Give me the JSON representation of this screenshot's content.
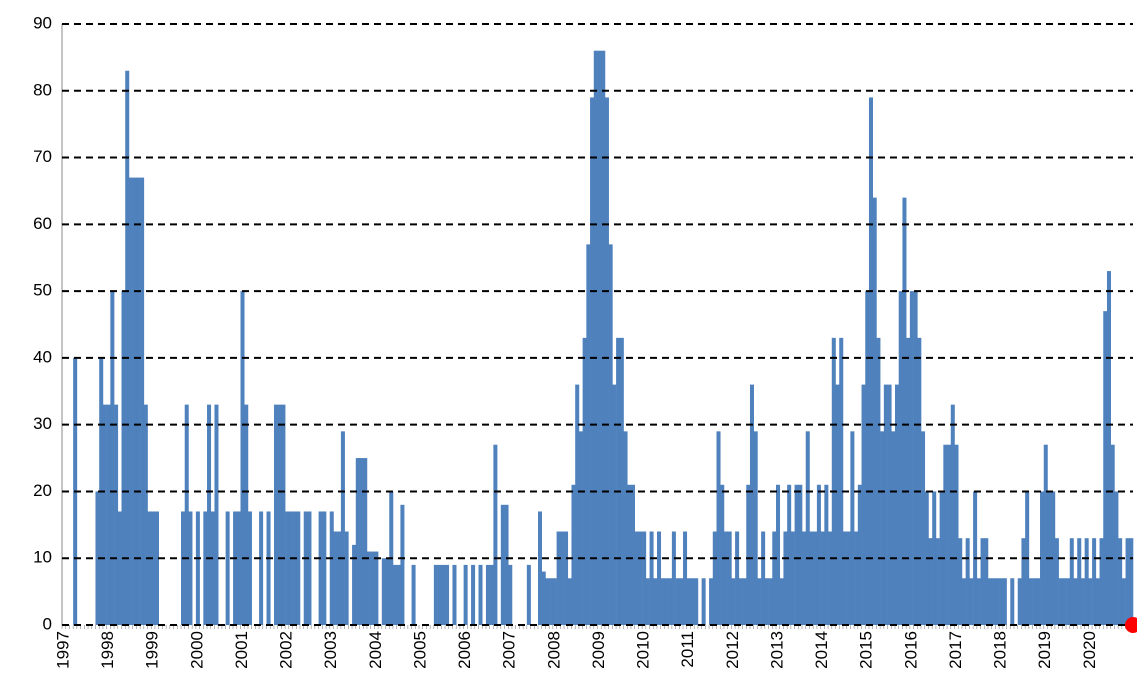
{
  "chart_data": {
    "type": "bar",
    "categories": [
      "1997",
      null,
      null,
      null,
      null,
      null,
      null,
      null,
      null,
      null,
      null,
      null,
      "1998",
      null,
      null,
      null,
      null,
      null,
      null,
      null,
      null,
      null,
      null,
      null,
      "1999",
      null,
      null,
      null,
      null,
      null,
      null,
      null,
      null,
      null,
      null,
      null,
      "2000",
      null,
      null,
      null,
      null,
      null,
      null,
      null,
      null,
      null,
      null,
      null,
      "2001",
      null,
      null,
      null,
      null,
      null,
      null,
      null,
      null,
      null,
      null,
      null,
      "2002",
      null,
      null,
      null,
      null,
      null,
      null,
      null,
      null,
      null,
      null,
      null,
      "2003",
      null,
      null,
      null,
      null,
      null,
      null,
      null,
      null,
      null,
      null,
      null,
      "2004",
      null,
      null,
      null,
      null,
      null,
      null,
      null,
      null,
      null,
      null,
      null,
      "2005",
      null,
      null,
      null,
      null,
      null,
      null,
      null,
      null,
      null,
      null,
      null,
      "2006",
      null,
      null,
      null,
      null,
      null,
      null,
      null,
      null,
      null,
      null,
      null,
      "2007",
      null,
      null,
      null,
      null,
      null,
      null,
      null,
      null,
      null,
      null,
      null,
      "2008",
      null,
      null,
      null,
      null,
      null,
      null,
      null,
      null,
      null,
      null,
      null,
      "2009",
      null,
      null,
      null,
      null,
      null,
      null,
      null,
      null,
      null,
      null,
      null,
      "2010",
      null,
      null,
      null,
      null,
      null,
      null,
      null,
      null,
      null,
      null,
      null,
      "2011",
      null,
      null,
      null,
      null,
      null,
      null,
      null,
      null,
      null,
      null,
      null,
      "2012",
      null,
      null,
      null,
      null,
      null,
      null,
      null,
      null,
      null,
      null,
      null,
      "2013",
      null,
      null,
      null,
      null,
      null,
      null,
      null,
      null,
      null,
      null,
      null,
      "2014",
      null,
      null,
      null,
      null,
      null,
      null,
      null,
      null,
      null,
      null,
      null,
      "2015",
      null,
      null,
      null,
      null,
      null,
      null,
      null,
      null,
      null,
      null,
      null,
      "2016",
      null,
      null,
      null,
      null,
      null,
      null,
      null,
      null,
      null,
      null,
      null,
      "2017",
      null,
      null,
      null,
      null,
      null,
      null,
      null,
      null,
      null,
      null,
      null,
      "2018",
      null,
      null,
      null,
      null,
      null,
      null,
      null,
      null,
      null,
      null,
      null,
      "2019",
      null,
      null,
      null,
      null,
      null,
      null,
      null,
      null,
      null,
      null,
      null,
      "2020",
      null,
      null,
      null,
      null,
      null,
      null,
      null,
      null,
      null,
      null,
      null
    ],
    "values": [
      0,
      0,
      0,
      40,
      0,
      0,
      0,
      0,
      0,
      20,
      40,
      33,
      33,
      50,
      33,
      17,
      50,
      83,
      67,
      67,
      67,
      67,
      33,
      17,
      17,
      17,
      0,
      0,
      0,
      0,
      0,
      0,
      17,
      33,
      17,
      0,
      17,
      0,
      17,
      33,
      17,
      33,
      0,
      0,
      17,
      0,
      17,
      17,
      50,
      33,
      17,
      0,
      0,
      17,
      0,
      17,
      0,
      33,
      33,
      33,
      17,
      17,
      17,
      17,
      0,
      17,
      17,
      0,
      0,
      17,
      17,
      0,
      17,
      14,
      14,
      29,
      14,
      0,
      12,
      25,
      25,
      25,
      11,
      11,
      11,
      0,
      10,
      10,
      20,
      9,
      9,
      18,
      0,
      0,
      9,
      0,
      0,
      0,
      0,
      0,
      9,
      9,
      9,
      9,
      0,
      9,
      0,
      0,
      9,
      0,
      9,
      0,
      9,
      0,
      9,
      9,
      27,
      0,
      18,
      18,
      9,
      0,
      0,
      0,
      0,
      9,
      0,
      0,
      17,
      8,
      7,
      7,
      7,
      14,
      14,
      14,
      7,
      21,
      36,
      29,
      43,
      57,
      79,
      86,
      86,
      86,
      79,
      57,
      36,
      43,
      43,
      29,
      21,
      21,
      14,
      14,
      14,
      7,
      14,
      7,
      14,
      7,
      7,
      7,
      14,
      7,
      7,
      14,
      7,
      7,
      7,
      0,
      7,
      0,
      7,
      14,
      29,
      21,
      14,
      14,
      7,
      14,
      7,
      7,
      21,
      36,
      29,
      7,
      14,
      7,
      7,
      14,
      21,
      7,
      14,
      21,
      14,
      21,
      21,
      14,
      29,
      14,
      14,
      21,
      14,
      21,
      14,
      43,
      36,
      43,
      14,
      14,
      29,
      14,
      21,
      36,
      50,
      79,
      64,
      43,
      29,
      36,
      36,
      29,
      36,
      50,
      64,
      43,
      50,
      50,
      43,
      29,
      20,
      13,
      20,
      13,
      20,
      27,
      27,
      33,
      27,
      13,
      7,
      13,
      7,
      20,
      7,
      13,
      13,
      7,
      7,
      7,
      7,
      7,
      0,
      7,
      0,
      7,
      13,
      20,
      7,
      7,
      7,
      20,
      27,
      20,
      20,
      13,
      7,
      7,
      7,
      13,
      7,
      13,
      7,
      13,
      7,
      13,
      7,
      13,
      47,
      53,
      27,
      20,
      13,
      7,
      13,
      13
    ],
    "color": "#4f81bd",
    "ylim": [
      0,
      90
    ],
    "yticks": [
      0,
      10,
      20,
      30,
      40,
      50,
      60,
      70,
      80,
      90
    ],
    "grid": true
  }
}
